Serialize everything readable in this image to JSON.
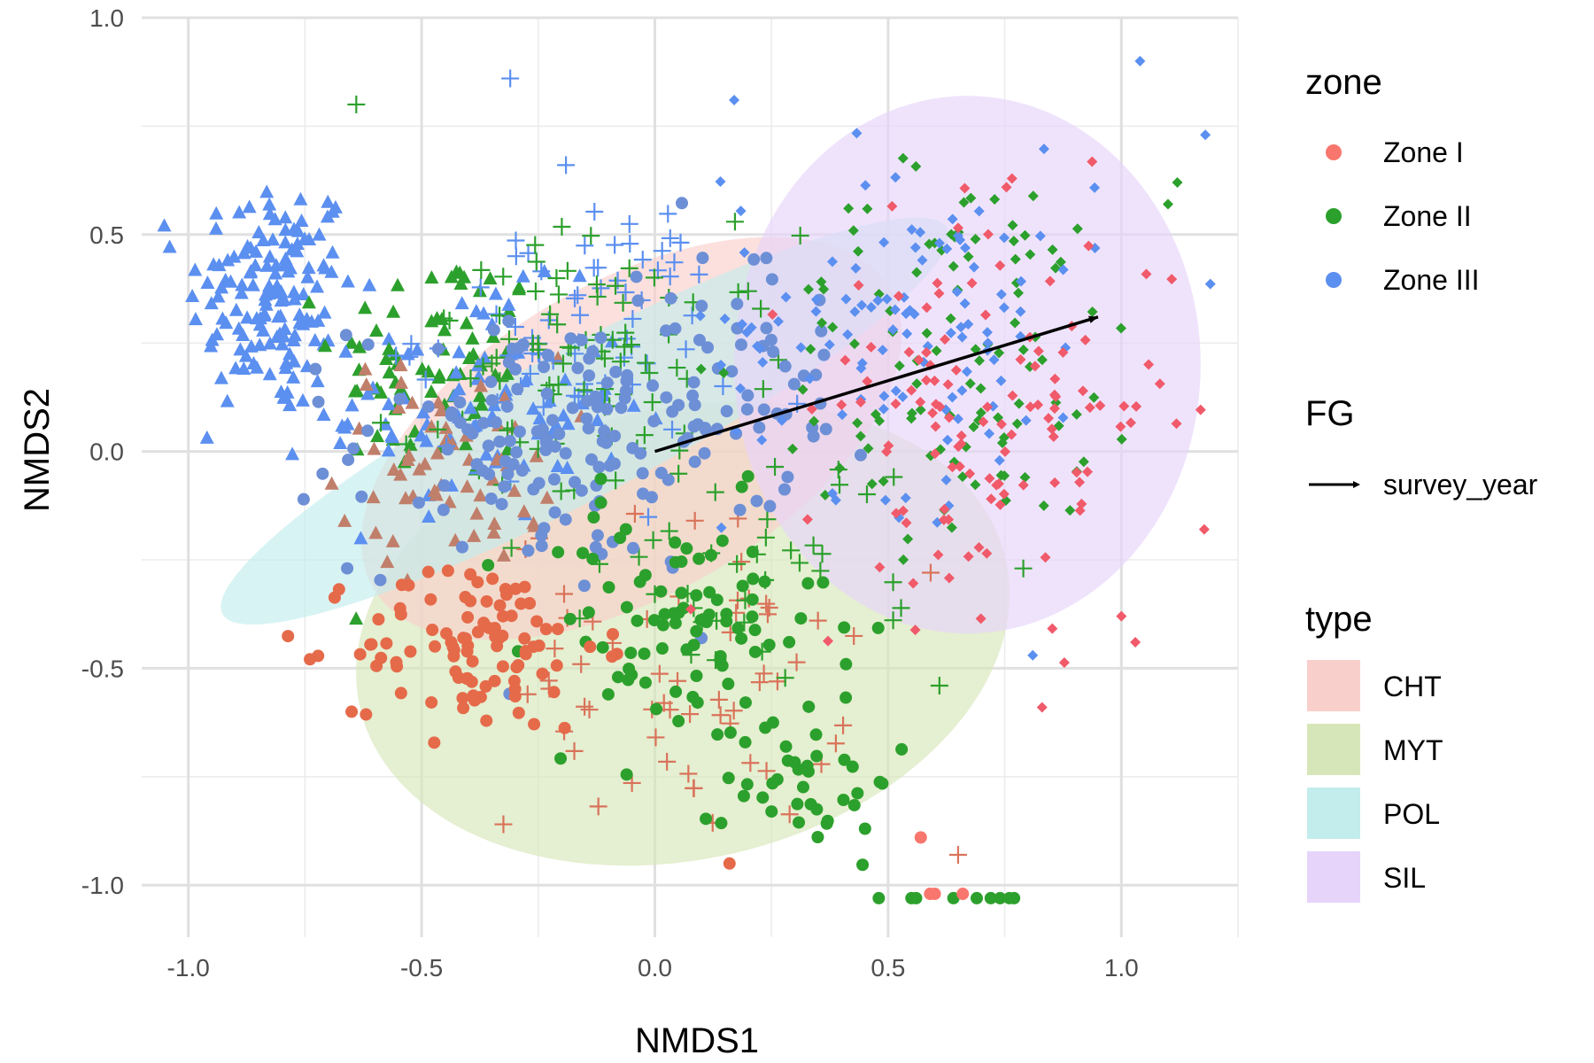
{
  "chart_data": {
    "type": "scatter",
    "xlabel": "NMDS1",
    "ylabel": "NMDS2",
    "xlim": [
      -1.1,
      1.25
    ],
    "ylim": [
      -1.12,
      1.0
    ],
    "x_ticks": [
      "-1.0",
      "-0.5",
      "0.0",
      "0.5",
      "1.0"
    ],
    "x_tick_values": [
      -1.0,
      -0.5,
      0.0,
      0.5,
      1.0
    ],
    "y_ticks": [
      "1.0",
      "0.5",
      "0.0",
      "-0.5",
      "-1.0"
    ],
    "y_tick_values": [
      1.0,
      0.5,
      0.0,
      -0.5,
      -1.0
    ],
    "grid": true,
    "legend_position": "right",
    "colors": {
      "zone_i": "#f8766d",
      "zone_ii": "#2ca02c",
      "zone_iii": "#5b8ff0",
      "cht_fill": "#f9cfcb",
      "myt_fill": "#d7e6b8",
      "pol_fill": "#c3ecec",
      "sil_fill": "#e6d4fb"
    },
    "legend_zone": {
      "title": "zone",
      "items": [
        {
          "label": "Zone I",
          "color": "#f8766d"
        },
        {
          "label": "Zone II",
          "color": "#2ca02c"
        },
        {
          "label": "Zone III",
          "color": "#5b8ff0"
        }
      ]
    },
    "legend_fg": {
      "title": "FG",
      "items": [
        {
          "label": "survey_year"
        }
      ]
    },
    "legend_type": {
      "title": "type",
      "items": [
        {
          "label": "CHT",
          "color": "#f9cfcb"
        },
        {
          "label": "MYT",
          "color": "#d7e6b8"
        },
        {
          "label": "POL",
          "color": "#c3ecec"
        },
        {
          "label": "SIL",
          "color": "#e6d4fb"
        }
      ]
    },
    "ellipses": [
      {
        "type": "MYT",
        "cx": 0.06,
        "cy": -0.42,
        "rx": 0.71,
        "ry": 0.52,
        "angle_deg": -13,
        "color": "#d7e6b8"
      },
      {
        "type": "CHT",
        "cx": -0.05,
        "cy": 0.03,
        "rx": 0.64,
        "ry": 0.36,
        "angle_deg": -30,
        "color": "#f9cfcb"
      },
      {
        "type": "POL",
        "cx": -0.15,
        "cy": 0.07,
        "rx": 0.88,
        "ry": 0.17,
        "angle_deg": -28,
        "color": "#c3ecec"
      },
      {
        "type": "SIL",
        "cx": 0.67,
        "cy": 0.2,
        "rx": 0.5,
        "ry": 0.62,
        "angle_deg": 0,
        "color": "#e6d4fb"
      }
    ],
    "vector": {
      "label": "survey_year",
      "from": [
        0.0,
        0.0
      ],
      "to": [
        0.95,
        0.31
      ]
    },
    "clusters": [
      {
        "type": "POL",
        "shape": "triangle",
        "zone": "Zone III",
        "color": "#5b8ff0",
        "n": 140,
        "cx": -0.82,
        "cy": 0.36,
        "sx": 0.09,
        "sy": 0.14
      },
      {
        "type": "POL",
        "shape": "triangle",
        "zone": "Zone II",
        "color": "#2ca02c",
        "n": 70,
        "cx": -0.47,
        "cy": 0.2,
        "sx": 0.11,
        "sy": 0.14
      },
      {
        "type": "POL",
        "shape": "triangle",
        "zone": "Zone III",
        "color": "#5b8ff0",
        "n": 90,
        "cx": -0.38,
        "cy": 0.1,
        "sx": 0.16,
        "sy": 0.13
      },
      {
        "type": "POL",
        "shape": "triangle",
        "zone": "Zone I",
        "color": "#c07f6b",
        "n": 60,
        "cx": -0.44,
        "cy": -0.02,
        "sx": 0.12,
        "sy": 0.12
      },
      {
        "type": "CHT",
        "shape": "plus",
        "zone": "Zone III",
        "color": "#5b8ff0",
        "n": 70,
        "cx": -0.17,
        "cy": 0.28,
        "sx": 0.17,
        "sy": 0.15
      },
      {
        "type": "CHT",
        "shape": "plus",
        "zone": "Zone II",
        "color": "#2ca02c",
        "n": 90,
        "cx": -0.12,
        "cy": 0.18,
        "sx": 0.2,
        "sy": 0.16
      },
      {
        "type": "CHT",
        "shape": "plus",
        "zone": "Zone I",
        "color": "#d9735a",
        "n": 60,
        "cx": 0.05,
        "cy": -0.52,
        "sx": 0.18,
        "sy": 0.18
      },
      {
        "type": "CHT",
        "shape": "plus",
        "zone": "Zone II",
        "color": "#2ca02c",
        "n": 35,
        "cx": 0.25,
        "cy": -0.25,
        "sx": 0.18,
        "sy": 0.14
      },
      {
        "type": "MYT",
        "shape": "circle",
        "zone": "Zone III",
        "color": "#6d8fd6",
        "n": 150,
        "cx": -0.2,
        "cy": 0.02,
        "sx": 0.22,
        "sy": 0.15
      },
      {
        "type": "MYT",
        "shape": "circle",
        "zone": "Zone II",
        "color": "#2ca02c",
        "n": 90,
        "cx": 0.05,
        "cy": -0.4,
        "sx": 0.16,
        "sy": 0.14
      },
      {
        "type": "MYT",
        "shape": "circle",
        "zone": "Zone II",
        "color": "#2ca02c",
        "n": 40,
        "cx": 0.33,
        "cy": -0.75,
        "sx": 0.09,
        "sy": 0.1
      },
      {
        "type": "MYT",
        "shape": "circle",
        "zone": "Zone I",
        "color": "#e56a4a",
        "n": 100,
        "cx": -0.38,
        "cy": -0.45,
        "sx": 0.13,
        "sy": 0.1
      },
      {
        "type": "MYT",
        "shape": "circle",
        "zone": "Zone III",
        "color": "#6d8fd6",
        "n": 40,
        "cx": 0.2,
        "cy": 0.2,
        "sx": 0.12,
        "sy": 0.18
      },
      {
        "type": "SIL",
        "shape": "diamond",
        "zone": "Zone II",
        "color": "#2ca02c",
        "n": 110,
        "cx": 0.66,
        "cy": 0.22,
        "sx": 0.21,
        "sy": 0.22
      },
      {
        "type": "SIL",
        "shape": "diamond",
        "zone": "Zone III",
        "color": "#5b8ff0",
        "n": 110,
        "cx": 0.55,
        "cy": 0.3,
        "sx": 0.2,
        "sy": 0.2
      },
      {
        "type": "SIL",
        "shape": "diamond",
        "zone": "Zone I",
        "color": "#f05a6a",
        "n": 120,
        "cx": 0.72,
        "cy": 0.1,
        "sx": 0.2,
        "sy": 0.22
      }
    ],
    "row_points": [
      {
        "shape": "circle",
        "zone": "Zone II",
        "color": "#2ca02c",
        "xs": [
          0.48,
          0.55,
          0.56,
          0.64,
          0.69,
          0.72,
          0.74,
          0.76,
          0.77
        ],
        "y": -1.03
      },
      {
        "shape": "circle",
        "zone": "Zone I",
        "color": "#f8766d",
        "xs": [
          0.59,
          0.6,
          0.66
        ],
        "y": -1.02
      }
    ],
    "outliers": [
      {
        "shape": "plus",
        "zone": "Zone III",
        "color": "#5b8ff0",
        "x": -0.31,
        "y": 0.86
      },
      {
        "shape": "plus",
        "zone": "Zone II",
        "color": "#2ca02c",
        "x": -0.64,
        "y": 0.8
      },
      {
        "shape": "diamond",
        "zone": "Zone III",
        "color": "#5b8ff0",
        "x": 1.04,
        "y": 0.9
      },
      {
        "shape": "diamond",
        "zone": "Zone III",
        "color": "#5b8ff0",
        "x": 1.18,
        "y": 0.73
      },
      {
        "shape": "diamond",
        "zone": "Zone III",
        "color": "#5b8ff0",
        "x": 0.17,
        "y": 0.81
      },
      {
        "shape": "triangle",
        "zone": "Zone III",
        "color": "#5b8ff0",
        "x": -1.04,
        "y": 0.47
      },
      {
        "shape": "triangle",
        "zone": "Zone III",
        "color": "#5b8ff0",
        "x": -0.96,
        "y": 0.03
      },
      {
        "shape": "circle",
        "zone": "Zone I",
        "color": "#e56a4a",
        "x": -0.65,
        "y": -0.6
      },
      {
        "shape": "circle",
        "zone": "Zone I",
        "color": "#e56a4a",
        "x": 0.16,
        "y": -0.95
      },
      {
        "shape": "plus",
        "zone": "Zone I",
        "color": "#d9735a",
        "x": 0.65,
        "y": -0.93
      },
      {
        "shape": "diamond",
        "zone": "Zone I",
        "color": "#f05a6a",
        "x": 1.0,
        "y": -0.38
      },
      {
        "shape": "diamond",
        "zone": "Zone I",
        "color": "#f05a6a",
        "x": 1.03,
        "y": -0.44
      },
      {
        "shape": "diamond",
        "zone": "Zone I",
        "color": "#f05a6a",
        "x": 0.83,
        "y": -0.59
      },
      {
        "shape": "diamond",
        "zone": "Zone III",
        "color": "#5b8ff0",
        "x": 0.81,
        "y": -0.47
      },
      {
        "shape": "plus",
        "zone": "Zone II",
        "color": "#2ca02c",
        "x": 0.61,
        "y": -0.54
      },
      {
        "shape": "circle",
        "zone": "Zone I",
        "color": "#f8766d",
        "x": 0.57,
        "y": -0.89
      },
      {
        "shape": "diamond",
        "zone": "Zone II",
        "color": "#2ca02c",
        "x": 1.12,
        "y": 0.62
      },
      {
        "shape": "diamond",
        "zone": "Zone II",
        "color": "#2ca02c",
        "x": 1.1,
        "y": 0.57
      }
    ]
  }
}
